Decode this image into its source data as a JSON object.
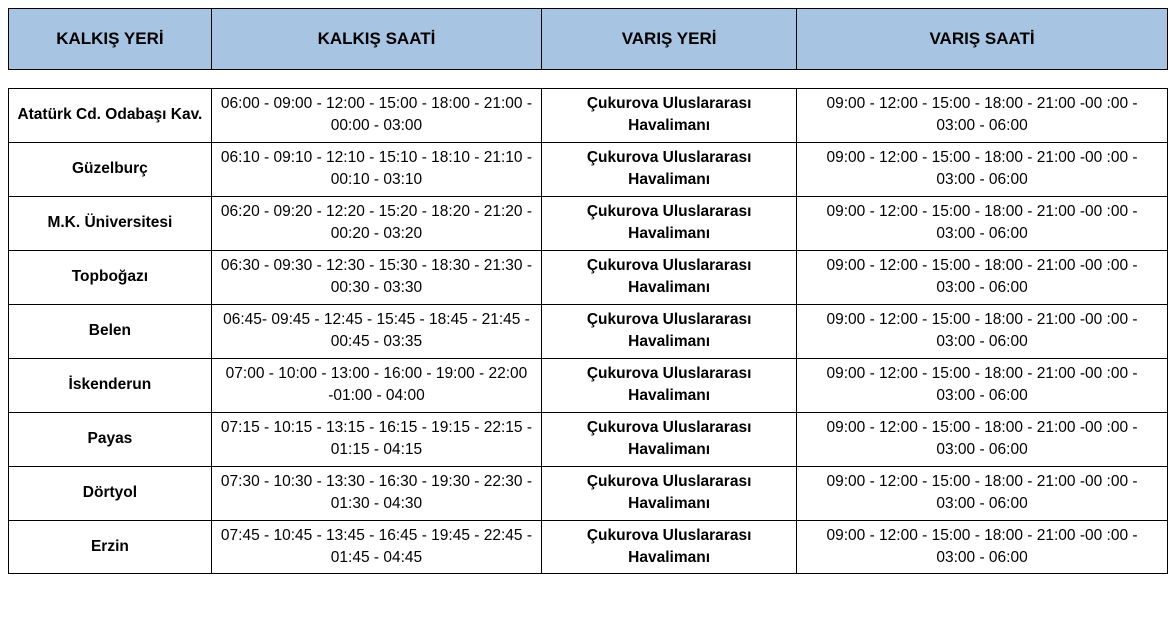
{
  "table": {
    "type": "table",
    "header_bg_color": "#a7c4e2",
    "border_color": "#000000",
    "text_color": "#000000",
    "background_color": "#ffffff",
    "header_fontsize": 17,
    "cell_fontsize": 15.5,
    "header_font_weight": "bold",
    "columns": [
      {
        "label": "KALKIŞ YERİ",
        "width_pct": 17.5,
        "bold_cells": true
      },
      {
        "label": "KALKIŞ SAATİ",
        "width_pct": 28.5,
        "bold_cells": false
      },
      {
        "label": "VARIŞ YERİ",
        "width_pct": 22.0,
        "bold_cells": true
      },
      {
        "label": "VARIŞ SAATİ",
        "width_pct": 32.0,
        "bold_cells": false
      }
    ],
    "rows": [
      {
        "departure_place": "Atatürk Cd. Odabaşı Kav.",
        "departure_times": "06:00 - 09:00 - 12:00 - 15:00 - 18:00 - 21:00 - 00:00 - 03:00",
        "arrival_place": "Çukurova Uluslararası Havalimanı",
        "arrival_times": "09:00 - 12:00 - 15:00 - 18:00 - 21:00 -00 :00 - 03:00 - 06:00"
      },
      {
        "departure_place": "Güzelburç",
        "departure_times": "06:10 - 09:10 - 12:10 - 15:10 - 18:10 - 21:10 - 00:10 - 03:10",
        "arrival_place": "Çukurova Uluslararası Havalimanı",
        "arrival_times": "09:00 - 12:00 - 15:00 - 18:00 - 21:00 -00 :00 - 03:00 - 06:00"
      },
      {
        "departure_place": "M.K. Üniversitesi",
        "departure_times": "06:20 - 09:20 - 12:20 - 15:20 - 18:20 - 21:20 - 00:20 - 03:20",
        "arrival_place": "Çukurova Uluslararası Havalimanı",
        "arrival_times": "09:00 - 12:00 - 15:00 - 18:00 - 21:00 -00 :00 - 03:00 - 06:00"
      },
      {
        "departure_place": "Topboğazı",
        "departure_times": "06:30 - 09:30 - 12:30 - 15:30 - 18:30 - 21:30 - 00:30 - 03:30",
        "arrival_place": "Çukurova Uluslararası Havalimanı",
        "arrival_times": "09:00 - 12:00 - 15:00 - 18:00 - 21:00 -00 :00 - 03:00 - 06:00"
      },
      {
        "departure_place": "Belen",
        "departure_times": "06:45- 09:45 - 12:45 - 15:45 - 18:45 - 21:45 - 00:45 - 03:35",
        "arrival_place": "Çukurova Uluslararası Havalimanı",
        "arrival_times": "09:00 - 12:00 - 15:00 - 18:00 - 21:00 -00 :00 - 03:00 - 06:00"
      },
      {
        "departure_place": "İskenderun",
        "departure_times": "07:00 - 10:00 - 13:00 - 16:00 - 19:00 - 22:00 -01:00 - 04:00",
        "arrival_place": "Çukurova Uluslararası Havalimanı",
        "arrival_times": "09:00 - 12:00 - 15:00 - 18:00 - 21:00 -00 :00 - 03:00 - 06:00"
      },
      {
        "departure_place": "Payas",
        "departure_times": "07:15 - 10:15 - 13:15 - 16:15 - 19:15 - 22:15 - 01:15 - 04:15",
        "arrival_place": "Çukurova Uluslararası Havalimanı",
        "arrival_times": "09:00 - 12:00 - 15:00 - 18:00 - 21:00 -00 :00 - 03:00 - 06:00"
      },
      {
        "departure_place": "Dörtyol",
        "departure_times": "07:30 - 10:30 - 13:30 - 16:30 - 19:30 - 22:30 - 01:30 - 04:30",
        "arrival_place": "Çukurova Uluslararası Havalimanı",
        "arrival_times": "09:00 - 12:00 - 15:00 - 18:00 - 21:00 -00 :00 - 03:00 - 06:00"
      },
      {
        "departure_place": "Erzin",
        "departure_times": "07:45 - 10:45 - 13:45 - 16:45 - 19:45 - 22:45 - 01:45 - 04:45",
        "arrival_place": "Çukurova Uluslararası Havalimanı",
        "arrival_times": "09:00 - 12:00 - 15:00 - 18:00 - 21:00 -00 :00 - 03:00 - 06:00"
      }
    ]
  }
}
